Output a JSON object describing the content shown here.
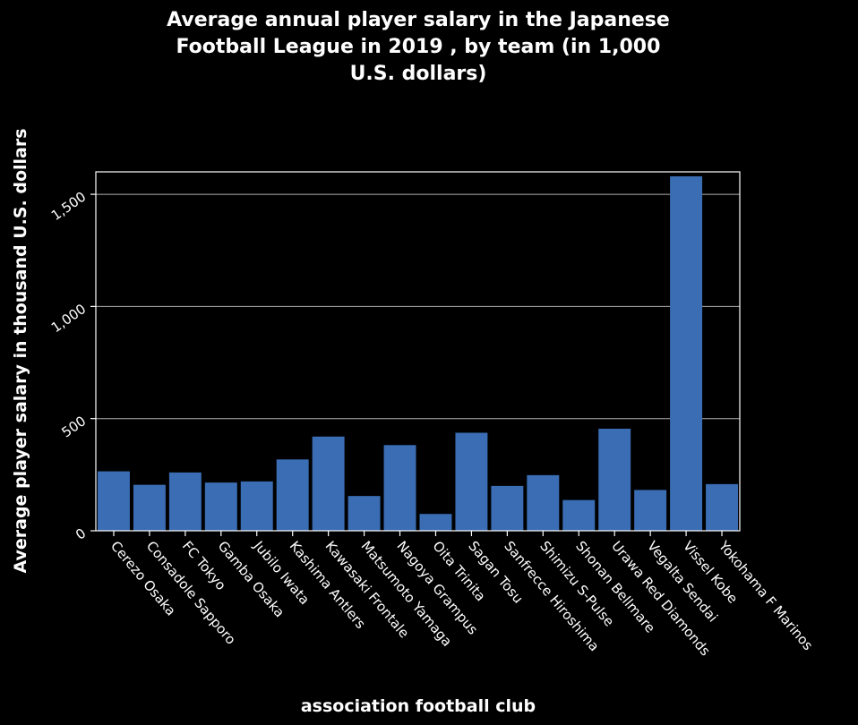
{
  "chart_data": {
    "type": "bar",
    "title_lines": [
      "Average annual player salary in the Japanese",
      "Football League in 2019 , by team (in 1,000",
      "U.S. dollars)"
    ],
    "xlabel": "association football club",
    "ylabel": "Average player salary in thousand U.S. dollars",
    "categories": [
      "Cerezo Osaka",
      "Consadole Sapporo",
      "FC Tokyo",
      "Gamba Osaka",
      "Jubilo Iwata",
      "Kashima Antlers",
      "Kawasaki Frontale",
      "Matsumoto Yamaga",
      "Nagoya Grampus",
      "Oita Trinita",
      "Sagan Tosu",
      "Sanfrecce Hiroshima",
      "Shimizu S-Pulse",
      "Shonan Bellmare",
      "Urawa Red Diamonds",
      "Vegalta Sendai",
      "Vissel Kobe",
      "Yokohama F Marinos"
    ],
    "values": [
      265,
      205,
      260,
      215,
      220,
      318,
      420,
      155,
      382,
      75,
      437,
      200,
      248,
      137,
      455,
      182,
      1580,
      208
    ],
    "ylim": [
      0,
      1600
    ],
    "yticks": [
      0,
      500,
      1000,
      1500
    ],
    "ytick_labels": [
      "0",
      "500",
      "1,000",
      "1,500"
    ],
    "grid": true,
    "bar_color": "#3a6db3",
    "background": "#000000",
    "text_color": "#ffffff"
  }
}
